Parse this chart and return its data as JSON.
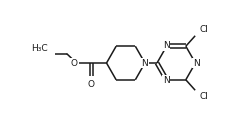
{
  "bg_color": "#ffffff",
  "line_color": "#1a1a1a",
  "line_width": 1.1,
  "font_size": 6.5,
  "xlim": [
    0,
    10
  ],
  "ylim": [
    0,
    5
  ]
}
